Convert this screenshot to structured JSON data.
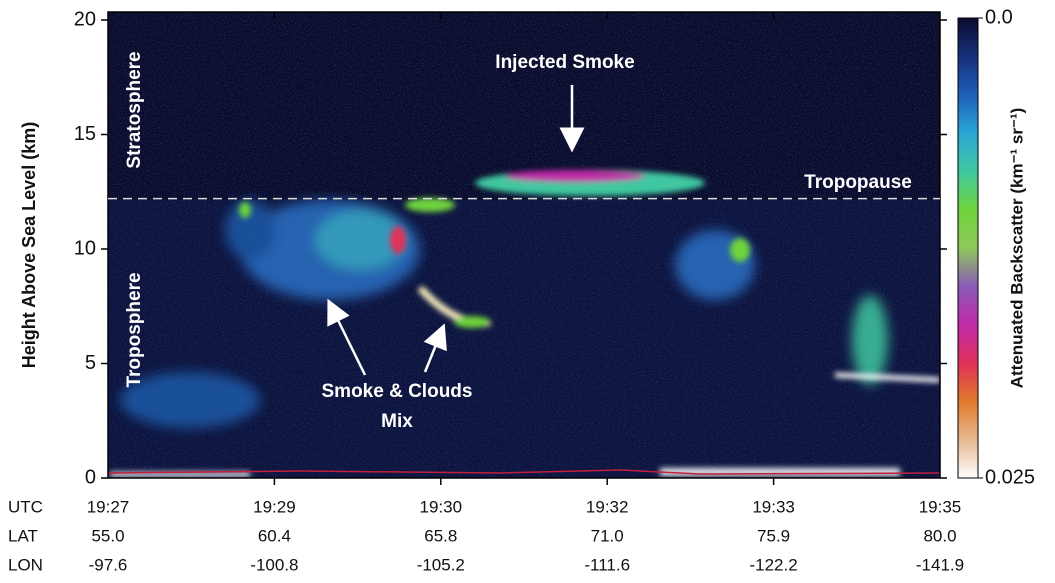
{
  "chart_data": {
    "type": "curtain",
    "y_label": "Height Above Sea Level (km)",
    "ylim": [
      0,
      20
    ],
    "yticks": [
      0,
      5,
      10,
      15,
      20
    ],
    "x_rows": [
      {
        "label": "UTC",
        "values": [
          "19:27",
          "19:29",
          "19:30",
          "19:32",
          "19:33",
          "19:35"
        ]
      },
      {
        "label": "LAT",
        "values": [
          {
            "value": 55,
            "label": "55.0"
          },
          60.4,
          65.8,
          {
            "value": 71,
            "label": "71.0"
          },
          75.9,
          {
            "value": 80,
            "label": "80.0"
          }
        ]
      },
      {
        "label": "LON",
        "values": [
          -97.6,
          -100.8,
          -105.2,
          -111.6,
          -122.2,
          -141.9
        ]
      }
    ],
    "tropopause_height": 12.2,
    "annotations": {
      "stratosphere": "Stratosphere",
      "troposphere": "Troposphere",
      "tropopause": "Tropopause",
      "injected_smoke": "Injected Smoke",
      "smoke_clouds_1": "Smoke & Clouds",
      "smoke_clouds_2": "Mix"
    },
    "colorbar": {
      "label": "Attenuated Backscatter (km⁻¹ sr⁻¹)",
      "lim": [
        0,
        0.025
      ],
      "ticks": [
        {
          "value": 0,
          "label": "0.0"
        },
        0.025
      ],
      "colors": [
        "#0b0b2e",
        "#16307a",
        "#1f5fb8",
        "#2aa6d6",
        "#3fc8a0",
        "#6fd43c",
        "#8fc85a",
        "#8a5ab8",
        "#c02aa8",
        "#e0305a",
        "#e07a2a",
        "#e6b890",
        "#ffffff"
      ]
    }
  }
}
